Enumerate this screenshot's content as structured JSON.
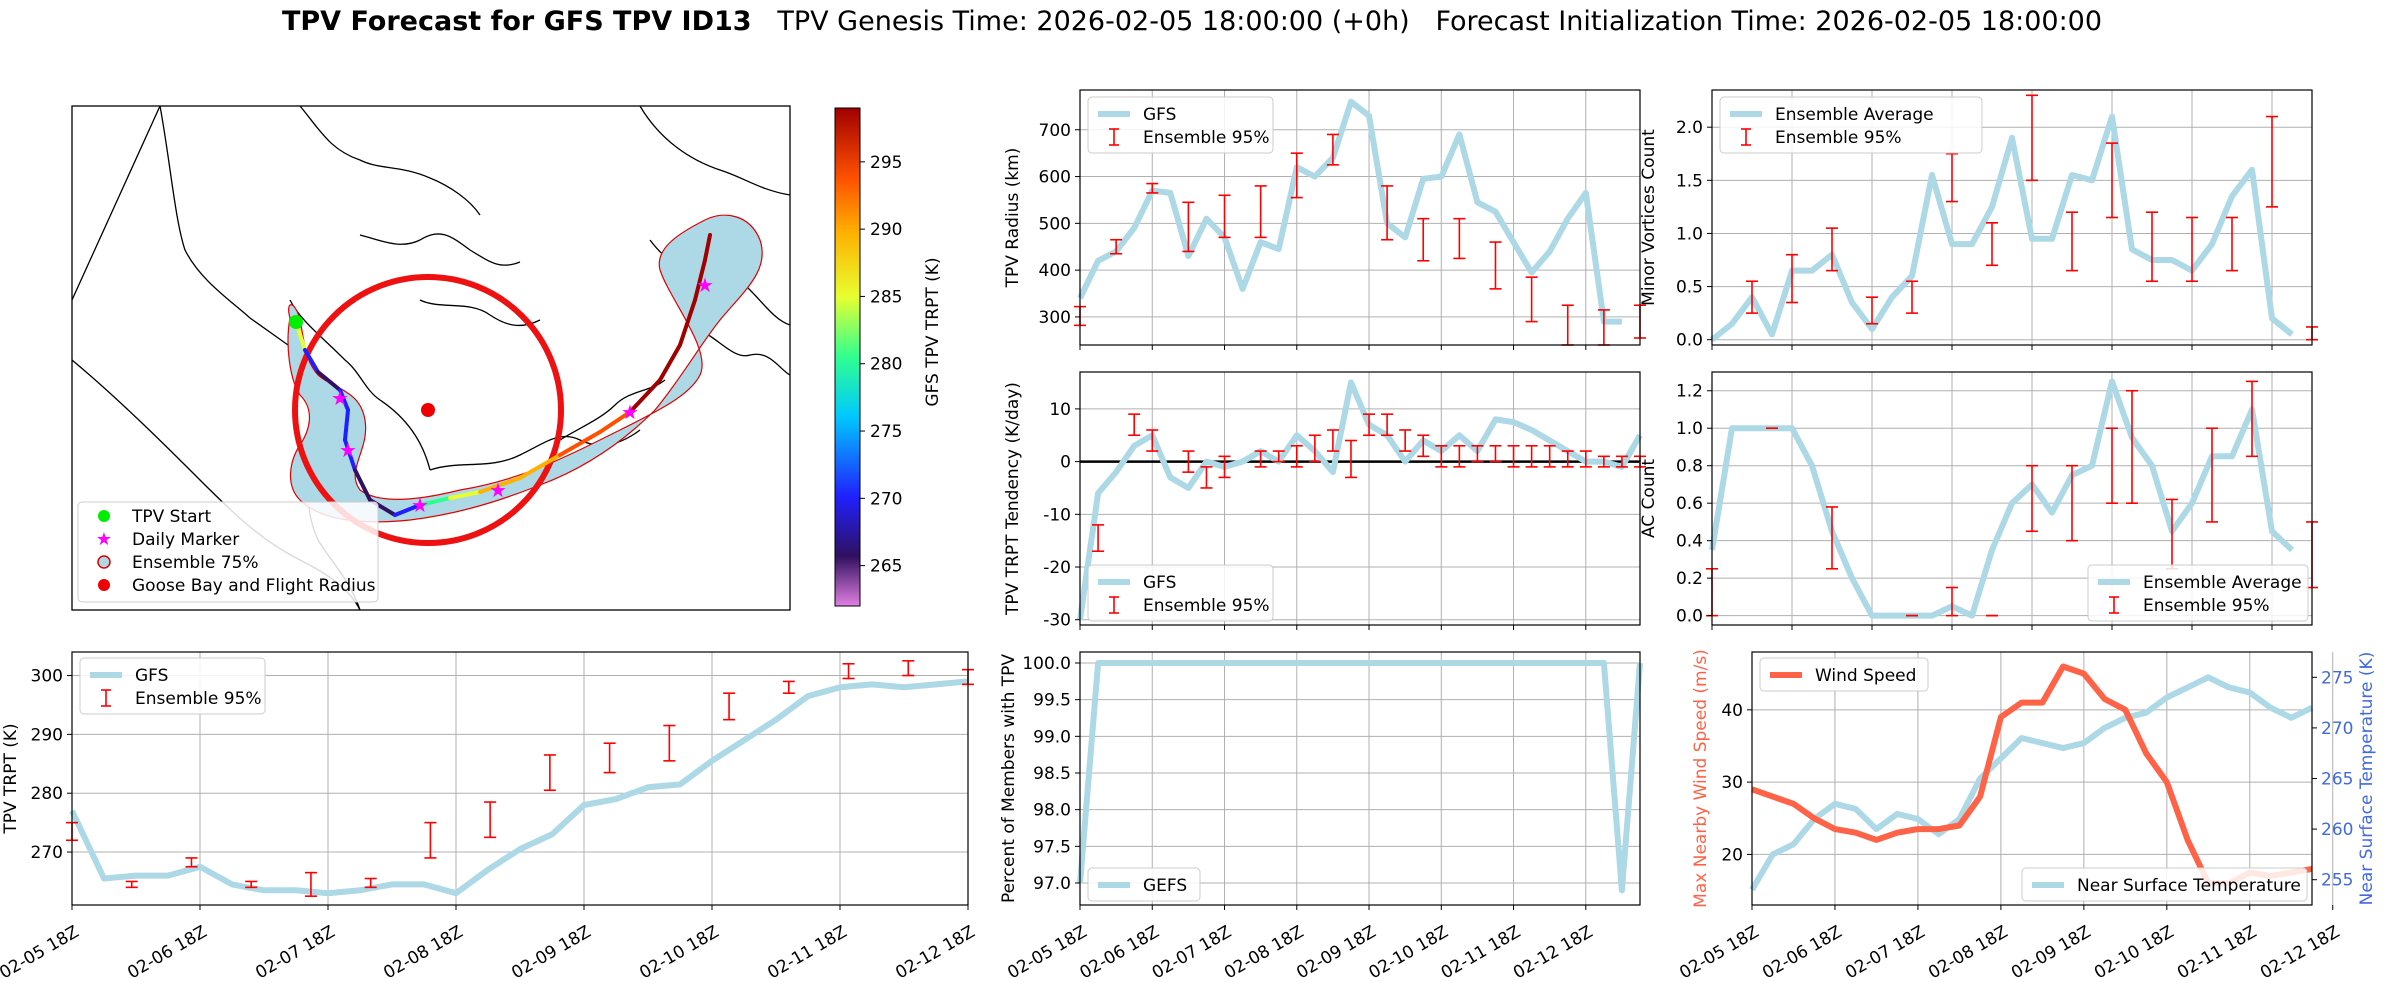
{
  "title": {
    "bold": "TPV Forecast for GFS TPV ID13",
    "rest": "   TPV Genesis Time: 2026-02-05 18:00:00 (+0h)   Forecast Initialization Time: 2026-02-05 18:00:00"
  },
  "colors": {
    "light_blue": "#add8e6",
    "error_red": "#ff0000",
    "wind": "#ff6347",
    "temp_axis": "#4169e1",
    "track_red": "#e00000"
  },
  "x_ticks": [
    "02-05 18Z",
    "02-06 18Z",
    "02-07 18Z",
    "02-08 18Z",
    "02-09 18Z",
    "02-10 18Z",
    "02-11 18Z",
    "02-12 18Z"
  ],
  "chart_data": [
    {
      "type": "map",
      "name": "track-map",
      "legend": [
        "TPV Start",
        "Daily Marker",
        "Ensemble 75%",
        "Goose Bay and Flight Radius"
      ],
      "colorbar": {
        "label": "GFS TPV TRPT (K)",
        "ticks": [
          265,
          270,
          275,
          280,
          285,
          290,
          295
        ],
        "range": [
          262,
          299
        ]
      }
    },
    {
      "type": "line",
      "name": "radius",
      "ylabel": "TPV Radius (km)",
      "ylim": [
        240,
        785
      ],
      "yticks": [
        300,
        400,
        500,
        600,
        700
      ],
      "legend": [
        "GFS",
        "Ensemble 95%"
      ],
      "gfs": [
        340,
        420,
        440,
        490,
        570,
        565,
        430,
        510,
        470,
        360,
        460,
        445,
        620,
        600,
        640,
        760,
        730,
        500,
        470,
        595,
        600,
        690,
        545,
        525,
        460,
        395,
        440,
        510,
        565,
        290,
        290
      ],
      "ens": [
        [
          0,
          282,
          322
        ],
        [
          2,
          435,
          465
        ],
        [
          4,
          565,
          585
        ],
        [
          6,
          440,
          545
        ],
        [
          8,
          470,
          560
        ],
        [
          10,
          470,
          580
        ],
        [
          12,
          555,
          650
        ],
        [
          14,
          625,
          690
        ],
        [
          17,
          465,
          580
        ],
        [
          19,
          420,
          510
        ],
        [
          21,
          425,
          510
        ],
        [
          23,
          360,
          460
        ],
        [
          25,
          290,
          385
        ],
        [
          27,
          240,
          325
        ],
        [
          29,
          240,
          315
        ],
        [
          31,
          255,
          325
        ]
      ]
    },
    {
      "type": "line",
      "name": "minor-vortices",
      "ylabel": "Minor Vortices Count",
      "ylim": [
        -0.05,
        2.35
      ],
      "yticks": [
        0.0,
        0.5,
        1.0,
        1.5,
        2.0
      ],
      "legend": [
        "Ensemble Average",
        "Ensemble 95%"
      ],
      "avg": [
        0.0,
        0.15,
        0.4,
        0.05,
        0.65,
        0.65,
        0.8,
        0.35,
        0.1,
        0.4,
        0.6,
        1.55,
        0.9,
        0.9,
        1.25,
        1.9,
        0.95,
        0.95,
        1.55,
        1.5,
        2.1,
        0.85,
        0.75,
        0.75,
        0.65,
        0.9,
        1.35,
        1.6,
        0.2,
        0.05
      ],
      "ens": [
        [
          2,
          0.25,
          0.55
        ],
        [
          4,
          0.35,
          0.8
        ],
        [
          6,
          0.65,
          1.05
        ],
        [
          8,
          0.15,
          0.4
        ],
        [
          10,
          0.25,
          0.55
        ],
        [
          12,
          1.3,
          1.75
        ],
        [
          14,
          0.7,
          1.1
        ],
        [
          16,
          1.5,
          2.3
        ],
        [
          18,
          0.65,
          1.2
        ],
        [
          20,
          1.15,
          1.85
        ],
        [
          22,
          0.55,
          1.2
        ],
        [
          24,
          0.55,
          1.15
        ],
        [
          26,
          0.65,
          1.15
        ],
        [
          28,
          1.25,
          2.1
        ],
        [
          30,
          0.0,
          0.12
        ]
      ]
    },
    {
      "type": "line",
      "name": "trpt-tendency",
      "ylabel": "TPV TRPT Tendency (K/day)",
      "ylim": [
        -31,
        17
      ],
      "yticks": [
        -30,
        -20,
        -10,
        0,
        10
      ],
      "legend": [
        "GFS",
        "Ensemble 95%"
      ],
      "gfs": [
        -30,
        -6,
        -2,
        3,
        5,
        -3,
        -5,
        0,
        -1,
        0,
        2,
        0,
        5,
        2,
        -2,
        15,
        7,
        5,
        0,
        4,
        2,
        5,
        2,
        8,
        7.5,
        6,
        4,
        2,
        0,
        0,
        -1,
        5
      ],
      "ens": [
        [
          1,
          -17,
          -12
        ],
        [
          3,
          5,
          9
        ],
        [
          4,
          2,
          6
        ],
        [
          6,
          -2,
          2
        ],
        [
          7,
          -5,
          -1
        ],
        [
          8,
          -3,
          1
        ],
        [
          10,
          -1,
          2
        ],
        [
          11,
          0,
          2
        ],
        [
          12,
          -1,
          3
        ],
        [
          13,
          0,
          5
        ],
        [
          14,
          2,
          6
        ],
        [
          15,
          -3,
          4
        ],
        [
          16,
          5,
          9
        ],
        [
          17,
          5,
          9
        ],
        [
          18,
          2,
          6
        ],
        [
          19,
          1,
          5
        ],
        [
          20,
          -1,
          3
        ],
        [
          21,
          -1,
          3
        ],
        [
          22,
          0,
          3
        ],
        [
          23,
          0,
          3
        ],
        [
          24,
          -1,
          3
        ],
        [
          25,
          -1,
          3
        ],
        [
          26,
          -1,
          3
        ],
        [
          27,
          -1,
          2
        ],
        [
          28,
          -1,
          2
        ],
        [
          29,
          -1,
          1
        ],
        [
          30,
          -1,
          1
        ],
        [
          31,
          -1,
          1
        ]
      ]
    },
    {
      "type": "line",
      "name": "ac-count",
      "ylabel": "AC Count",
      "ylim": [
        -0.05,
        1.3
      ],
      "yticks": [
        0.0,
        0.2,
        0.4,
        0.6,
        0.8,
        1.0,
        1.2
      ],
      "legend": [
        "Ensemble Average",
        "Ensemble 95%"
      ],
      "avg": [
        0.35,
        1.0,
        1.0,
        1.0,
        1.0,
        0.8,
        0.45,
        0.2,
        0.0,
        0.0,
        0.0,
        0.0,
        0.05,
        0.0,
        0.35,
        0.6,
        0.7,
        0.55,
        0.75,
        0.8,
        1.25,
        0.95,
        0.8,
        0.45,
        0.6,
        0.85,
        0.85,
        1.1,
        0.45,
        0.35
      ],
      "ens": [
        [
          0,
          0.0,
          0.25
        ],
        [
          3,
          1.0,
          1.0
        ],
        [
          6,
          0.25,
          0.58
        ],
        [
          10,
          0.0,
          0.0
        ],
        [
          12,
          0.0,
          0.15
        ],
        [
          14,
          0.0,
          0.0
        ],
        [
          16,
          0.45,
          0.8
        ],
        [
          18,
          0.4,
          0.8
        ],
        [
          20,
          0.6,
          1.0
        ],
        [
          21,
          0.6,
          1.2
        ],
        [
          23,
          0.25,
          0.62
        ],
        [
          25,
          0.5,
          1.0
        ],
        [
          27,
          0.85,
          1.25
        ],
        [
          30,
          0.15,
          0.5
        ]
      ]
    },
    {
      "type": "line",
      "name": "trpt",
      "ylabel": "TPV TRPT (K)",
      "ylim": [
        261,
        304
      ],
      "yticks": [
        270,
        280,
        290,
        300
      ],
      "legend": [
        "GFS",
        "Ensemble 95%"
      ],
      "gfs": [
        277,
        265.5,
        266,
        266,
        267.5,
        264.5,
        263.5,
        263.5,
        263,
        263.5,
        264.5,
        264.5,
        263,
        267,
        270.5,
        273,
        278,
        279,
        281,
        281.5,
        285.5,
        289,
        292.5,
        296.5,
        298,
        298.5,
        298,
        298.5,
        299
      ],
      "ens": [
        [
          0,
          272,
          275
        ],
        [
          2,
          264,
          265
        ],
        [
          4,
          267.5,
          269
        ],
        [
          6,
          264,
          265
        ],
        [
          8,
          262.5,
          266.5
        ],
        [
          10,
          264,
          265.5
        ],
        [
          12,
          269,
          275
        ],
        [
          14,
          272.5,
          278.5
        ],
        [
          16,
          280.5,
          286.5
        ],
        [
          18,
          283.5,
          288.5
        ],
        [
          20,
          285.5,
          291.5
        ],
        [
          22,
          292.5,
          297
        ],
        [
          24,
          297,
          299
        ],
        [
          26,
          299.5,
          302
        ],
        [
          28,
          300,
          302.5
        ],
        [
          30,
          298.5,
          301
        ]
      ]
    },
    {
      "type": "line",
      "name": "percent-members",
      "ylabel": "Percent of Members with TPV",
      "ylim": [
        96.7,
        100.15
      ],
      "yticks": [
        97.0,
        97.5,
        98.0,
        98.5,
        99.0,
        99.5,
        100.0
      ],
      "legend": [
        "GEFS"
      ],
      "gefs": [
        97.0,
        100,
        100,
        100,
        100,
        100,
        100,
        100,
        100,
        100,
        100,
        100,
        100,
        100,
        100,
        100,
        100,
        100,
        100,
        100,
        100,
        100,
        100,
        100,
        100,
        100,
        100,
        100,
        100,
        100,
        96.9,
        100
      ]
    },
    {
      "type": "line",
      "name": "wind-temp",
      "ylabel_left": "Max Nearby Wind Speed (m/s)",
      "ylabel_right": "Near Surface Temperature (K)",
      "ylim_left": [
        13,
        48
      ],
      "yticks_left": [
        20,
        30,
        40
      ],
      "ylim_right": [
        252.5,
        277.5
      ],
      "yticks_right": [
        255,
        260,
        265,
        270,
        275
      ],
      "legend": [
        "Wind Speed",
        "Near Surface Temperature"
      ],
      "wind": [
        29,
        28,
        27,
        25,
        23.5,
        23,
        22,
        23,
        23.5,
        23.5,
        24,
        28,
        39,
        41,
        41,
        46,
        45,
        41.5,
        40,
        34,
        30,
        22,
        16,
        16,
        17.5,
        17,
        17.5,
        18
      ],
      "temp": [
        254,
        257.5,
        258.5,
        261,
        262.5,
        262,
        260,
        261.5,
        261,
        259.5,
        261,
        265,
        267,
        269,
        268.5,
        268,
        268.5,
        270,
        271,
        271.5,
        273,
        274,
        275,
        274,
        273.5,
        272,
        271,
        272
      ]
    }
  ]
}
